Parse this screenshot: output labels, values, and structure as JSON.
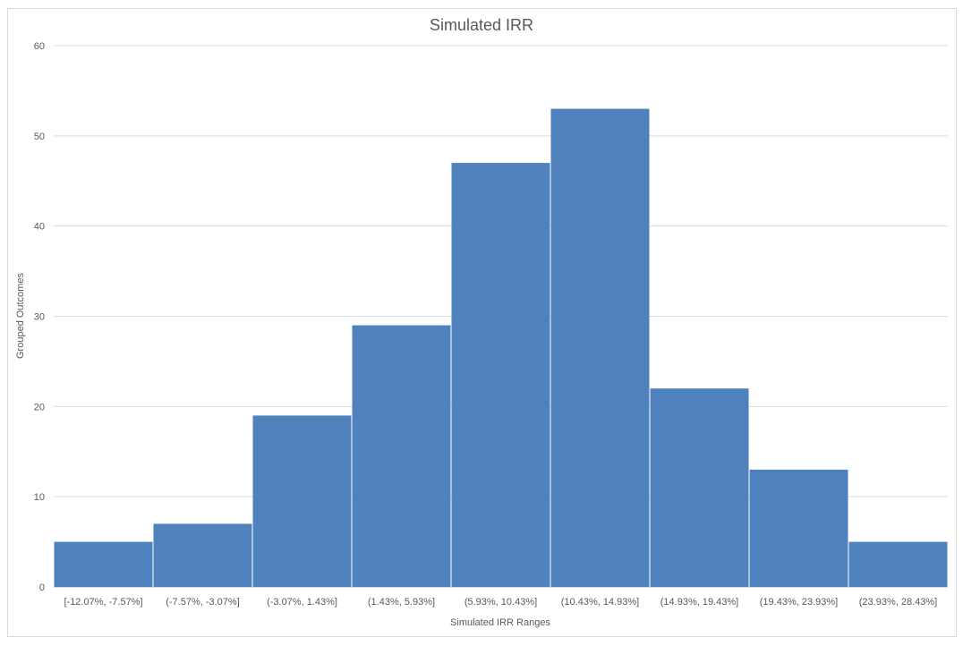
{
  "chart_data": {
    "type": "bar",
    "title": "Simulated IRR",
    "xlabel": "Simulated IRR Ranges",
    "ylabel": "Grouped Outcomes",
    "ylim": [
      0,
      60
    ],
    "yticks": [
      0,
      10,
      20,
      30,
      40,
      50,
      60
    ],
    "grid": true,
    "legend": "none",
    "categories": [
      "[-12.07%, -7.57%]",
      "(-7.57%, -3.07%]",
      "(-3.07%, 1.43%]",
      "(1.43%, 5.93%]",
      "(5.93%, 10.43%]",
      "(10.43%, 14.93%]",
      "(14.93%, 19.43%]",
      "(19.43%, 23.93%]",
      "(23.93%, 28.43%]"
    ],
    "values": [
      5,
      7,
      19,
      29,
      47,
      53,
      22,
      13,
      5
    ],
    "colors": {
      "bar": "#4f81bd",
      "gridline": "#d9d9d9",
      "text": "#595959"
    }
  }
}
